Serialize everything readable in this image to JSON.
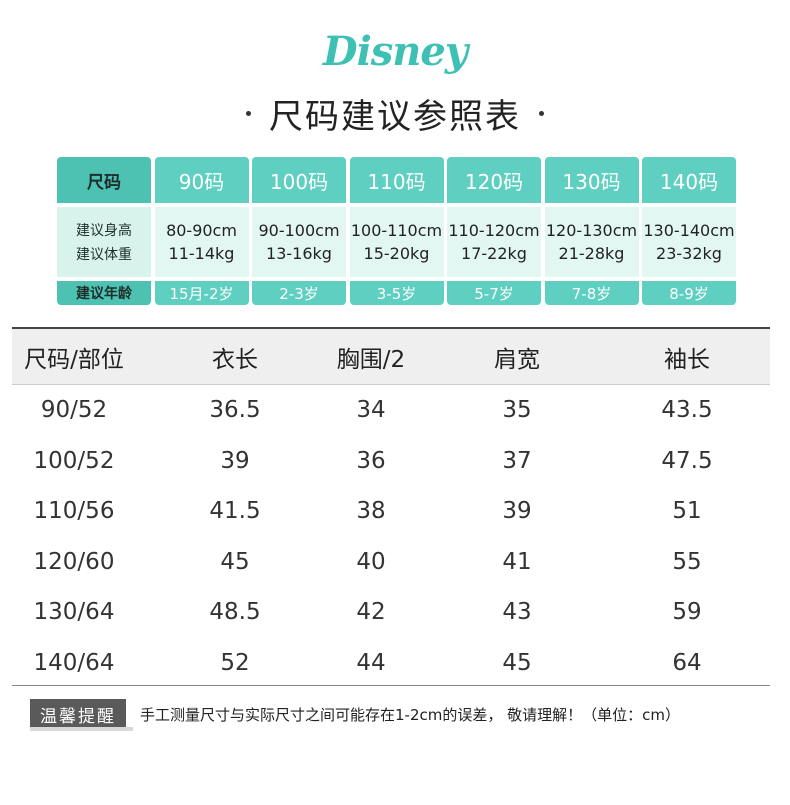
{
  "brand": {
    "logo_text": "Disney"
  },
  "title": {
    "text": "尺码建议参照表"
  },
  "recommend": {
    "label_column": {
      "head": "尺码",
      "height": "建议身高",
      "weight": "建议体重",
      "age": "建议年龄"
    },
    "sizes": [
      {
        "size": "90码",
        "height": "80-90cm",
        "weight": "11-14kg",
        "age": "15月-2岁"
      },
      {
        "size": "100码",
        "height": "90-100cm",
        "weight": "13-16kg",
        "age": "2-3岁"
      },
      {
        "size": "110码",
        "height": "100-110cm",
        "weight": "15-20kg",
        "age": "3-5岁"
      },
      {
        "size": "120码",
        "height": "110-120cm",
        "weight": "17-22kg",
        "age": "5-7岁"
      },
      {
        "size": "130码",
        "height": "120-130cm",
        "weight": "21-28kg",
        "age": "7-8岁"
      },
      {
        "size": "140码",
        "height": "130-140cm",
        "weight": "23-32kg",
        "age": "8-9岁"
      }
    ]
  },
  "measurements": {
    "headers": [
      "尺码/部位",
      "衣长",
      "胸围/2",
      "肩宽",
      "袖长"
    ],
    "rows": [
      [
        "90/52",
        "36.5",
        "34",
        "35",
        "43.5"
      ],
      [
        "100/52",
        "39",
        "36",
        "37",
        "47.5"
      ],
      [
        "110/56",
        "41.5",
        "38",
        "39",
        "51"
      ],
      [
        "120/60",
        "45",
        "40",
        "41",
        "55"
      ],
      [
        "130/64",
        "48.5",
        "42",
        "43",
        "59"
      ],
      [
        "140/64",
        "52",
        "44",
        "45",
        "64"
      ]
    ]
  },
  "note": {
    "tag": "温馨提醒",
    "text": "手工测量尺寸与实际尺寸之间可能存在1-2cm的误差， 敬请理解！（单位：cm）"
  }
}
